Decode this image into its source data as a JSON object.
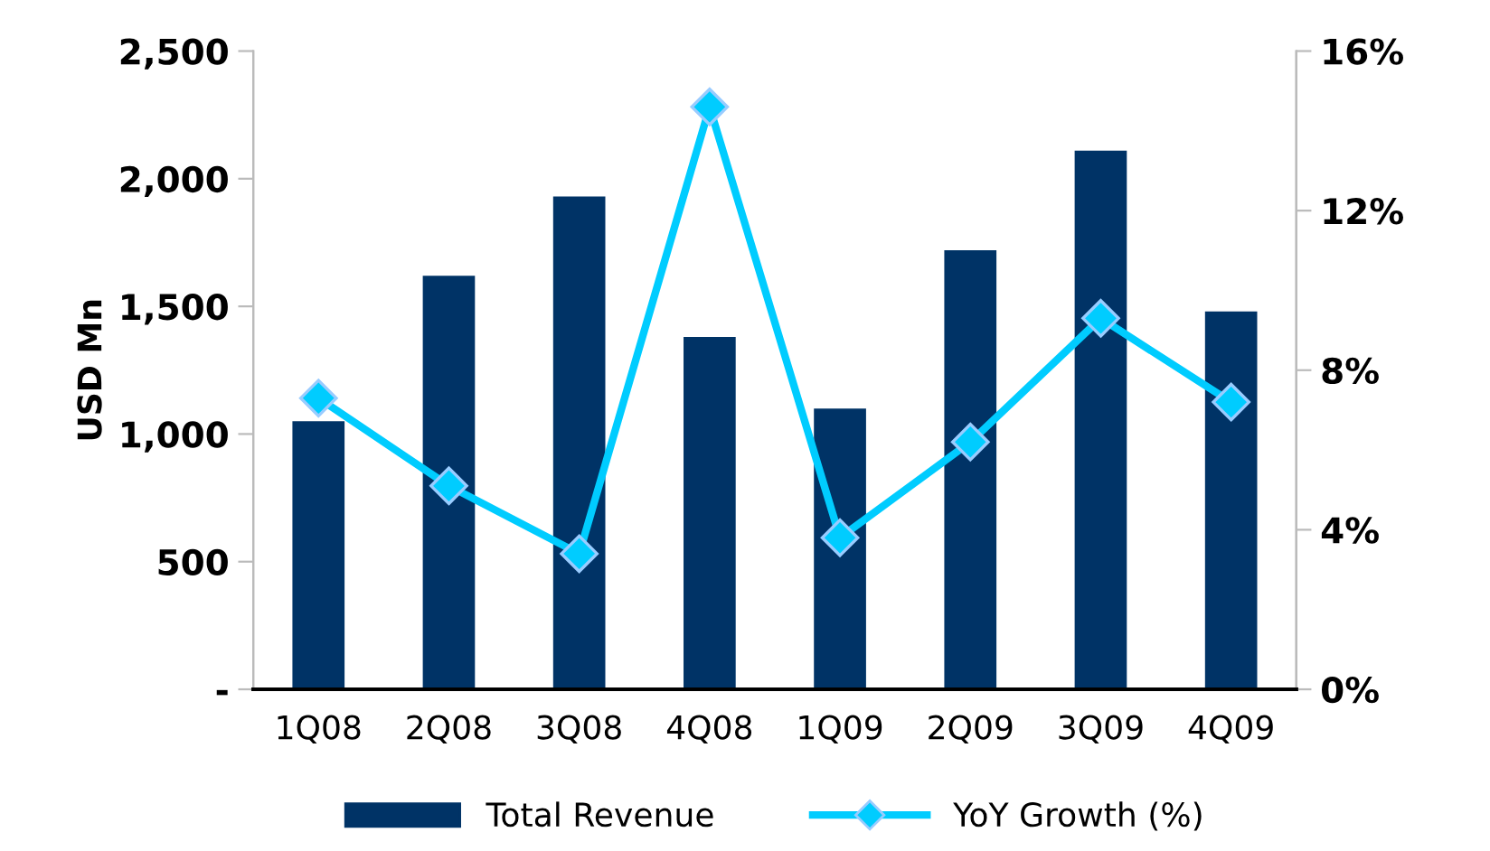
{
  "chart_data": {
    "type": "bar",
    "ylabel": "USD Mn",
    "categories": [
      "1Q08",
      "2Q08",
      "3Q08",
      "4Q08",
      "1Q09",
      "2Q09",
      "3Q09",
      "4Q09"
    ],
    "series": [
      {
        "name": "Total Revenue",
        "color": "#003366",
        "values": [
          1050,
          1620,
          1930,
          1380,
          1100,
          1720,
          2110,
          1480
        ]
      },
      {
        "name": "YoY Growth (%)",
        "type": "line",
        "axis": "y2",
        "color": "#00ccff",
        "marker": "diamond",
        "values": [
          7.3,
          5.1,
          3.4,
          14.6,
          3.8,
          6.2,
          9.3,
          7.2
        ]
      }
    ],
    "ylim": [
      0,
      2500
    ],
    "yticks": [
      {
        "value": 0,
        "label": "-"
      },
      {
        "value": 500,
        "label": "500"
      },
      {
        "value": 1000,
        "label": "1,000"
      },
      {
        "value": 1500,
        "label": "1,500"
      },
      {
        "value": 2000,
        "label": "2,000"
      },
      {
        "value": 2500,
        "label": "2,500"
      }
    ],
    "y2lim": [
      0,
      16
    ],
    "y2ticks": [
      {
        "value": 0,
        "label": "0%"
      },
      {
        "value": 4,
        "label": "4%"
      },
      {
        "value": 8,
        "label": "8%"
      },
      {
        "value": 12,
        "label": "12%"
      },
      {
        "value": 16,
        "label": "16%"
      }
    ],
    "legend": "bottom",
    "grid": false
  }
}
